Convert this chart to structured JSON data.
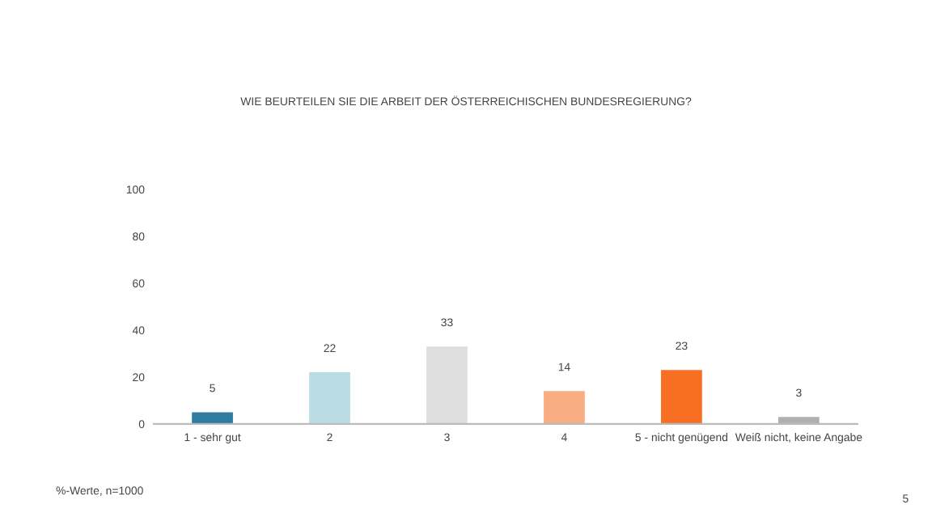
{
  "chart_data": {
    "type": "bar",
    "title": "WIE BEURTEILEN SIE DIE ARBEIT DER ÖSTERREICHISCHEN BUNDESREGIERUNG?",
    "categories": [
      "1 - sehr gut",
      "2",
      "3",
      "4",
      "5 - nicht genügend",
      "Weiß nicht, keine Angabe"
    ],
    "values": [
      5,
      22,
      33,
      14,
      23,
      3
    ],
    "colors": [
      "#2e7ca0",
      "#b9dde3",
      "#dedede",
      "#f9ad82",
      "#f86f24",
      "#b0b0b0"
    ],
    "ylim": [
      0,
      100
    ],
    "yticks": [
      0,
      20,
      40,
      60,
      80,
      100
    ],
    "grid": false,
    "data_labels": true,
    "annotations": [
      "%-Werte, n=1000",
      "5"
    ]
  }
}
